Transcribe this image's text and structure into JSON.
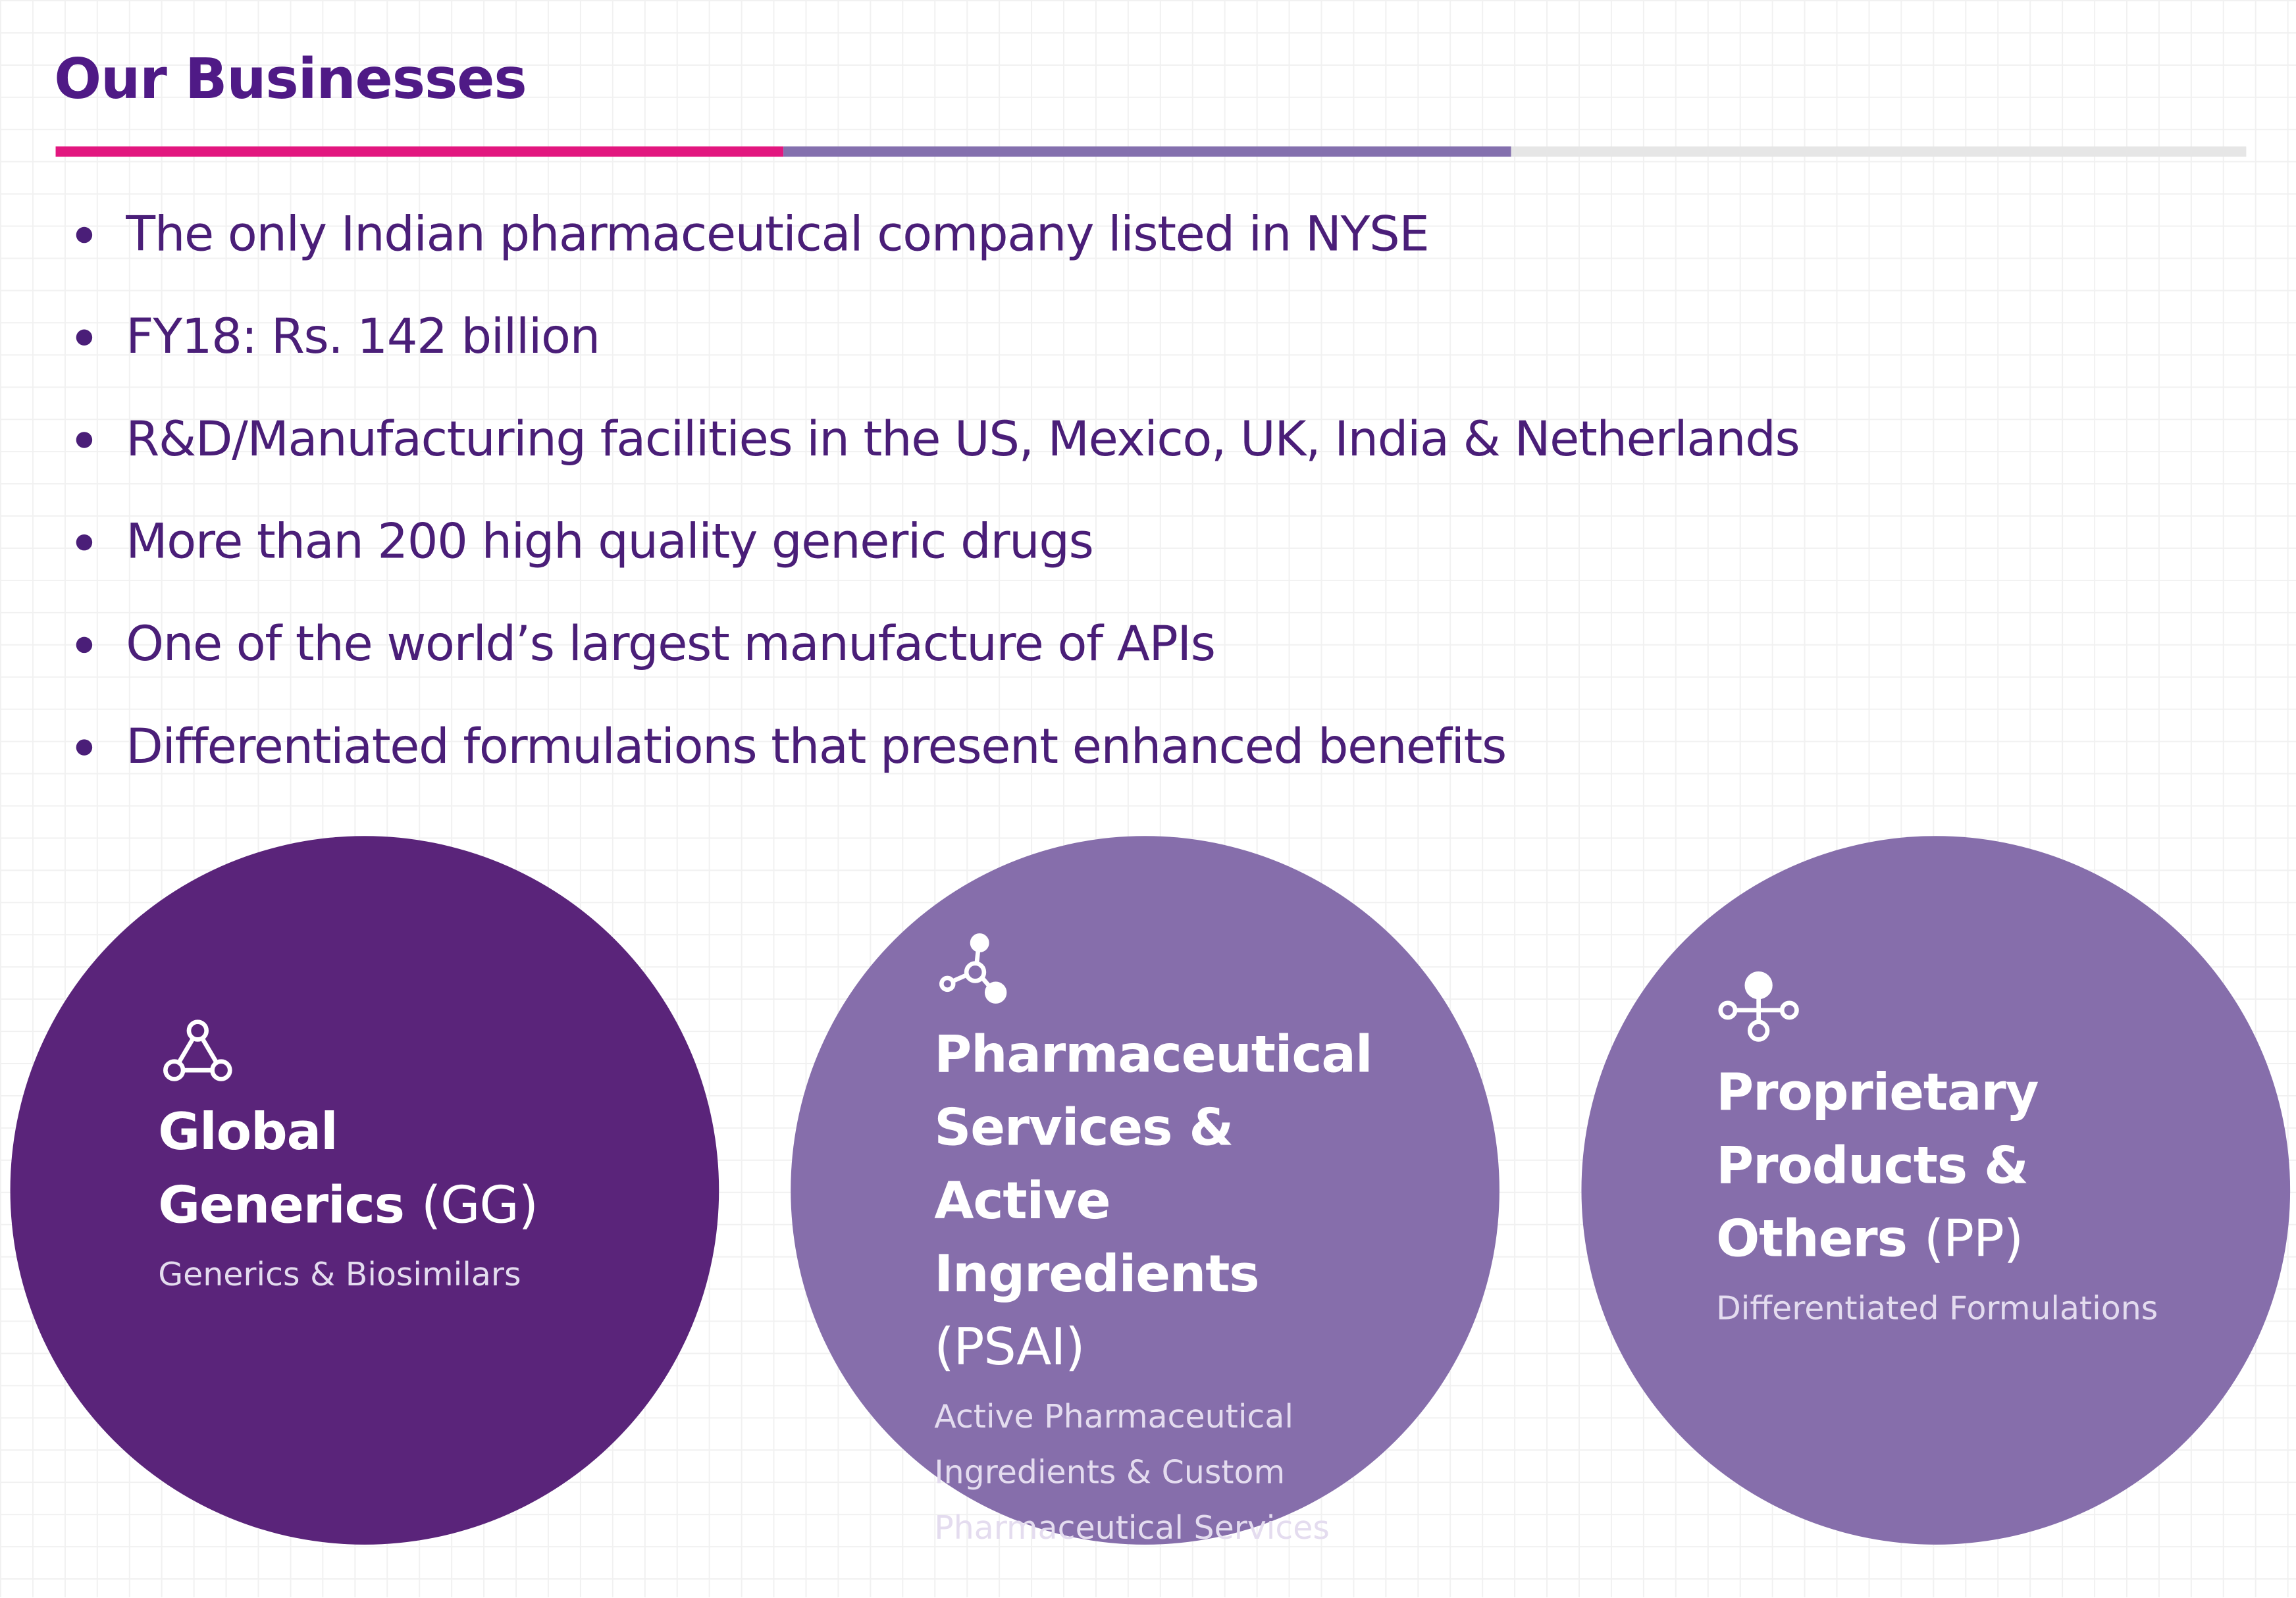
{
  "header": {
    "title": "Our Businesses"
  },
  "bullets": [
    "The only Indian pharmaceutical company listed in NYSE",
    "FY18: Rs. 142 billion",
    "R&D/Manufacturing facilities in the US, Mexico, UK, India & Netherlands",
    "More than 200 high quality generic drugs",
    "One of the world’s largest manufacture of APIs",
    "Differentiated formulations that present enhanced benefits"
  ],
  "businesses": [
    {
      "title": "Global Generics",
      "abbreviation": "(GG)",
      "description": "Generics & Biosimilars"
    },
    {
      "title": "Pharmaceutical Services & Active Ingredients",
      "abbreviation": "(PSAI)",
      "description": "Active Pharmaceutical Ingredients &  Custom Pharmaceutical Services"
    },
    {
      "title": "Proprietary Products & Others",
      "abbreviation": "(PP)",
      "description": "Differentiated Formulations"
    }
  ]
}
